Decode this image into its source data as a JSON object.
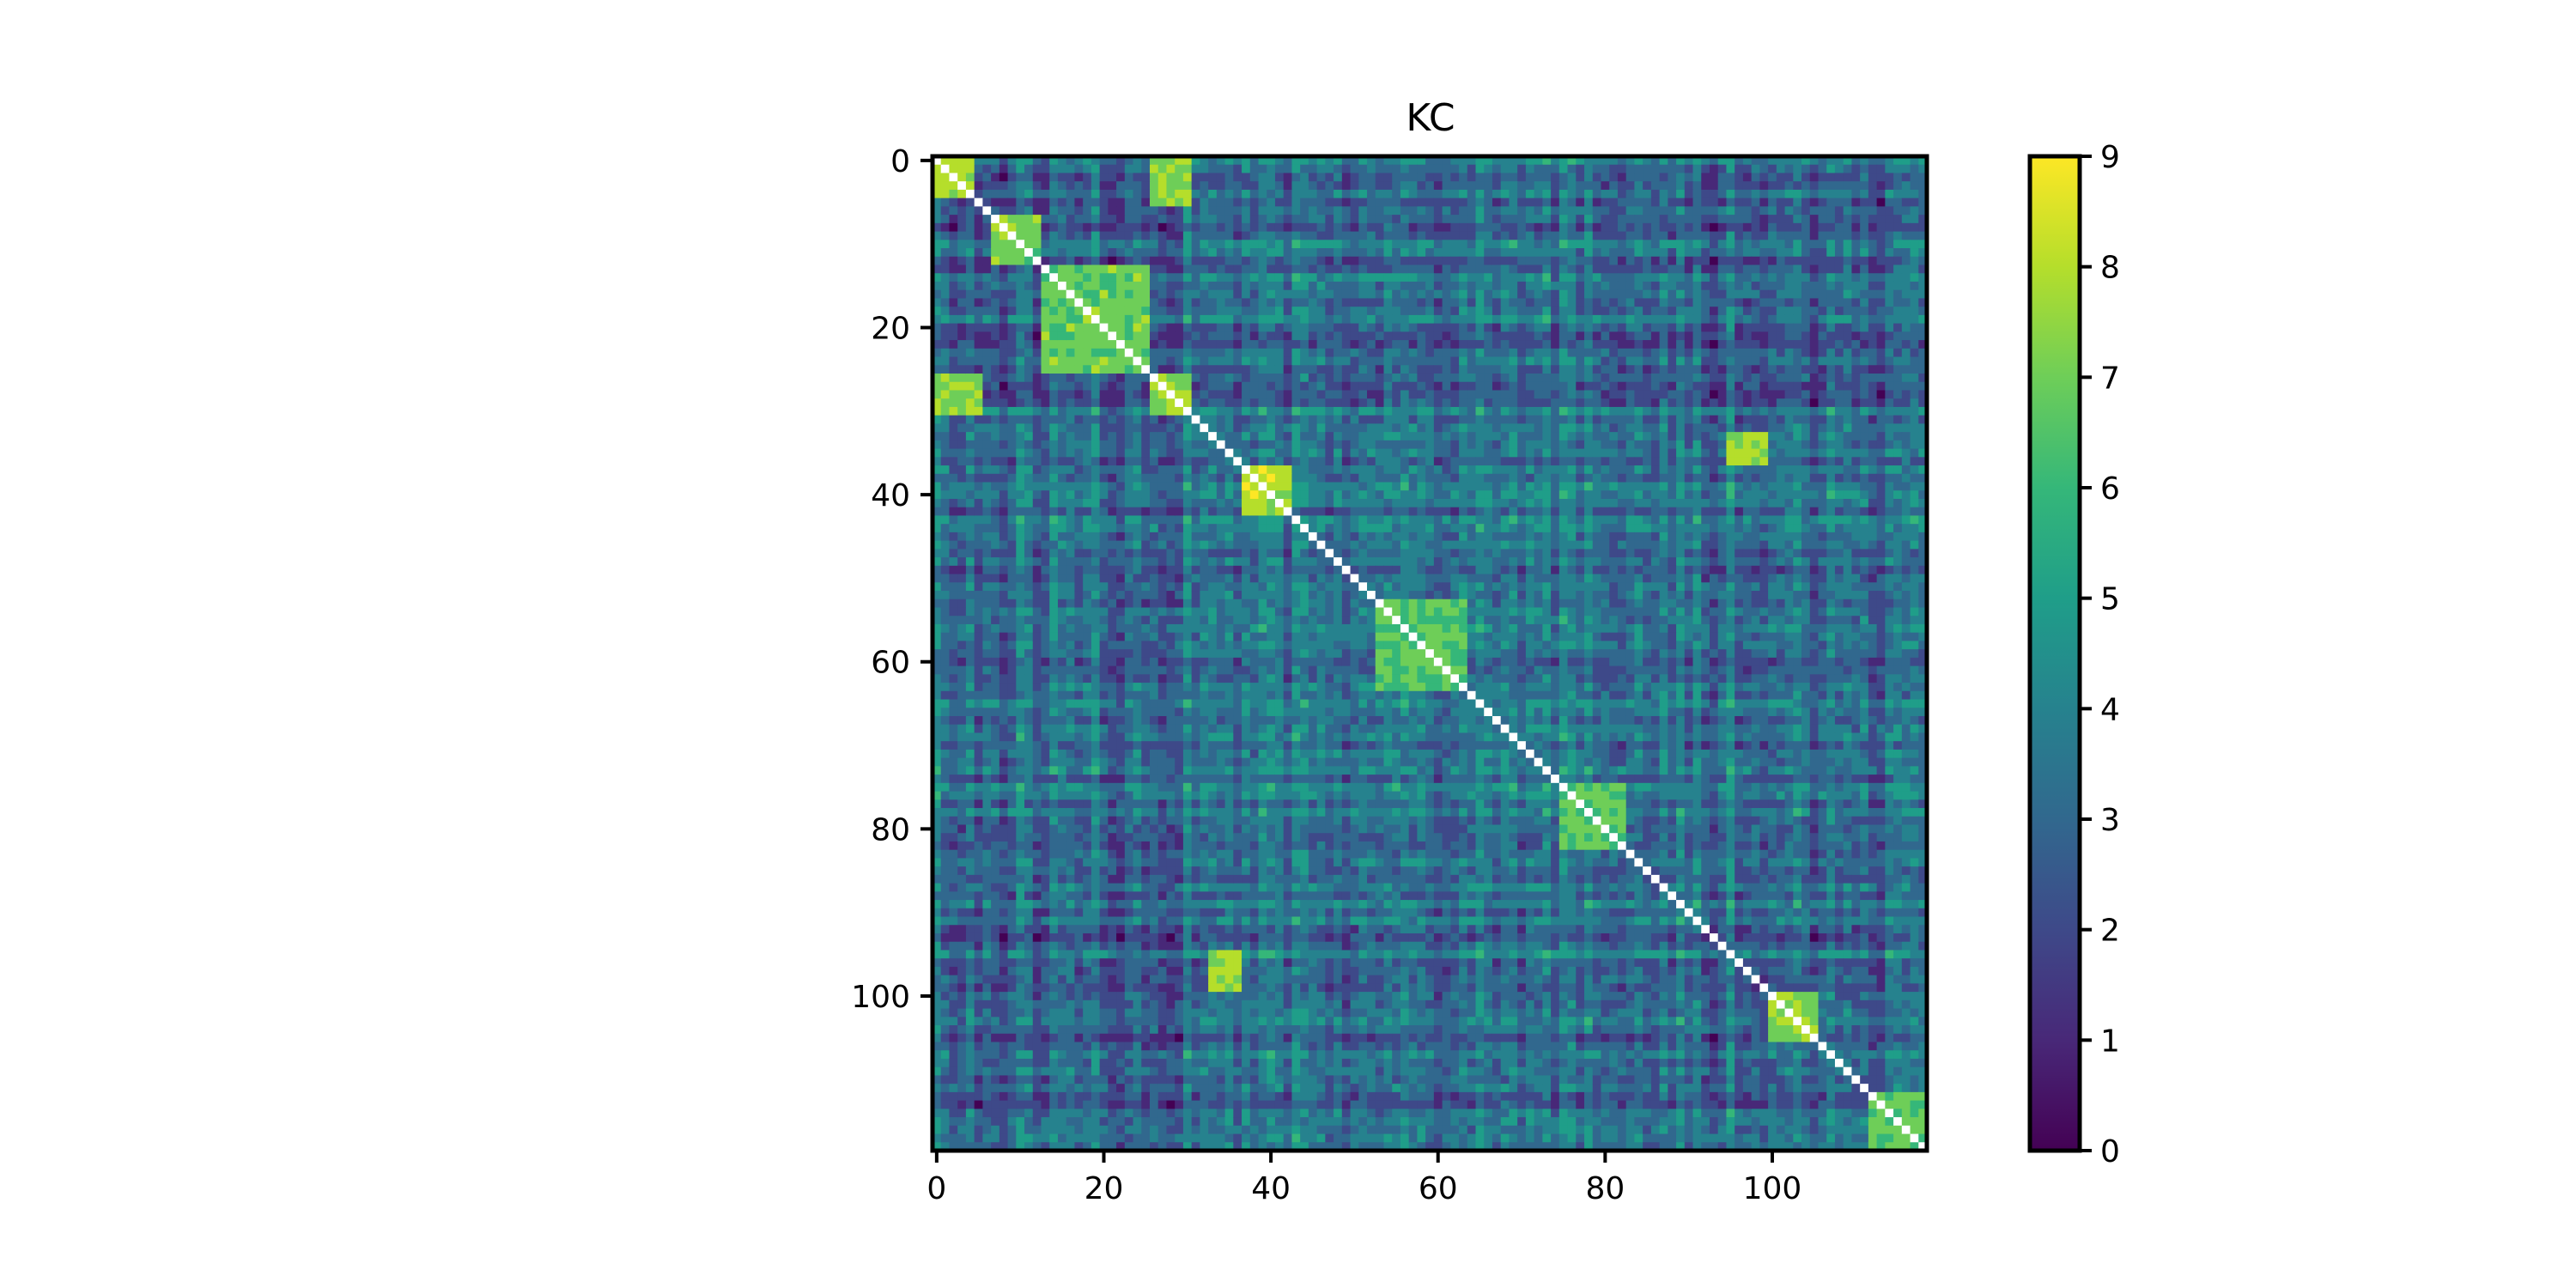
{
  "chart_data": {
    "type": "heatmap",
    "title": "KC",
    "n": 119,
    "xlim": [
      0,
      118
    ],
    "ylim": [
      0,
      118
    ],
    "x_ticks": [
      0,
      20,
      40,
      60,
      80,
      100
    ],
    "y_ticks": [
      0,
      20,
      40,
      60,
      80,
      100
    ],
    "x_tick_labels": [
      "0",
      "20",
      "40",
      "60",
      "80",
      "100"
    ],
    "y_tick_labels": [
      "0",
      "20",
      "40",
      "60",
      "80",
      "100"
    ],
    "diagonal": "white (self-pairs masked)",
    "colormap": "viridis",
    "colorbar": {
      "min": 0,
      "max": 9,
      "ticks": [
        0,
        1,
        2,
        3,
        4,
        5,
        6,
        7,
        8,
        9
      ],
      "tick_labels": [
        "0",
        "1",
        "2",
        "3",
        "4",
        "5",
        "6",
        "7",
        "8",
        "9"
      ]
    },
    "blocks": [
      {
        "rows": [
          0,
          4
        ],
        "cols": [
          0,
          4
        ],
        "value": 8.6
      },
      {
        "rows": [
          0,
          4
        ],
        "cols": [
          26,
          30
        ],
        "value": 8.0
      },
      {
        "rows": [
          8,
          12
        ],
        "cols": [
          7,
          12
        ],
        "value": 7.8
      },
      {
        "rows": [
          13,
          25
        ],
        "cols": [
          13,
          25
        ],
        "value": 7.6
      },
      {
        "rows": [
          26,
          30
        ],
        "cols": [
          0,
          5
        ],
        "value": 7.8
      },
      {
        "rows": [
          26,
          30
        ],
        "cols": [
          26,
          30
        ],
        "value": 8.2
      },
      {
        "rows": [
          37,
          42
        ],
        "cols": [
          37,
          42
        ],
        "value": 8.6
      },
      {
        "rows": [
          33,
          35
        ],
        "cols": [
          95,
          99
        ],
        "value": 8.4
      },
      {
        "rows": [
          53,
          63
        ],
        "cols": [
          53,
          63
        ],
        "value": 7.2
      },
      {
        "rows": [
          75,
          82
        ],
        "cols": [
          75,
          82
        ],
        "value": 7.4
      },
      {
        "rows": [
          95,
          99
        ],
        "cols": [
          33,
          36
        ],
        "value": 8.4
      },
      {
        "rows": [
          100,
          105
        ],
        "cols": [
          100,
          105
        ],
        "value": 8.0
      },
      {
        "rows": [
          112,
          118
        ],
        "cols": [
          112,
          118
        ],
        "value": 7.5
      }
    ]
  },
  "colors": {
    "viridis": [
      "#440154",
      "#482878",
      "#3e4989",
      "#31688e",
      "#26828e",
      "#1f9e89",
      "#35b779",
      "#6ece58",
      "#b5de2b",
      "#fde725"
    ],
    "diagonal": "#ffffff",
    "axes": "#000000"
  }
}
